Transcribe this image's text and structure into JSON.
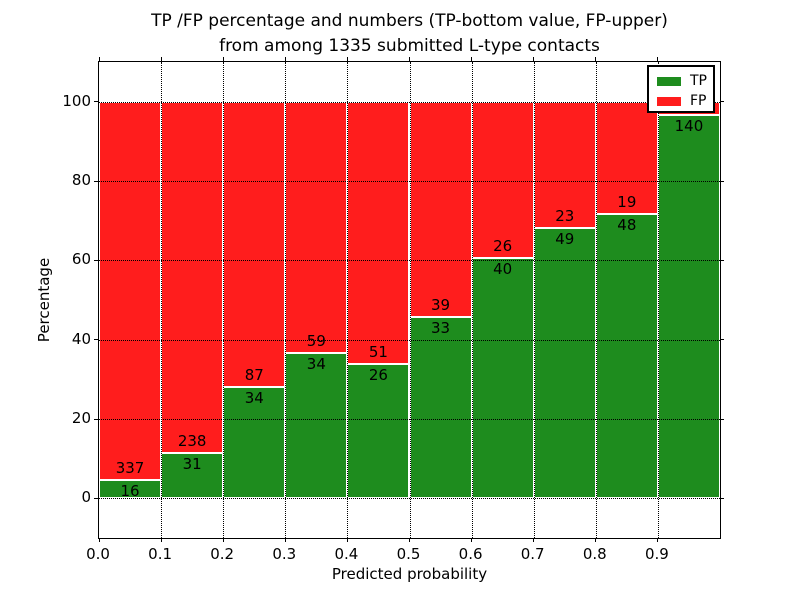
{
  "title": {
    "line1": "TP /FP percentage and numbers (TP-bottom value, FP-upper)",
    "line2": "from among 1335 submitted L-type contacts"
  },
  "axes": {
    "xlabel": "Predicted probability",
    "ylabel": "Percentage",
    "x_ticks": [
      {
        "value": 0.0,
        "label": "0.0"
      },
      {
        "value": 0.1,
        "label": "0.1"
      },
      {
        "value": 0.2,
        "label": "0.2"
      },
      {
        "value": 0.3,
        "label": "0.3"
      },
      {
        "value": 0.4,
        "label": "0.4"
      },
      {
        "value": 0.5,
        "label": "0.5"
      },
      {
        "value": 0.6,
        "label": "0.6"
      },
      {
        "value": 0.7,
        "label": "0.7"
      },
      {
        "value": 0.8,
        "label": "0.8"
      },
      {
        "value": 0.9,
        "label": "0.9"
      }
    ],
    "y_ticks": [
      {
        "value": 0,
        "label": "0"
      },
      {
        "value": 20,
        "label": "20"
      },
      {
        "value": 40,
        "label": "40"
      },
      {
        "value": 60,
        "label": "60"
      },
      {
        "value": 80,
        "label": "80"
      },
      {
        "value": 100,
        "label": "100"
      }
    ],
    "xlim": [
      0.0,
      1.0
    ],
    "ylim": [
      -10,
      110
    ],
    "grid_style": "dotted"
  },
  "legend": {
    "position": "upper-right",
    "items": [
      {
        "label": "TP",
        "color": "#1e8c1e"
      },
      {
        "label": "FP",
        "color": "#ff1d1d"
      }
    ]
  },
  "colors": {
    "tp": "#1e8c1e",
    "fp": "#ff1d1d",
    "bar_edge": "#ffffff",
    "grid": "#000000"
  },
  "chart_data": {
    "type": "bar",
    "stacked": true,
    "normalized_to_percent": true,
    "title": "TP /FP percentage and numbers (TP-bottom value, FP-upper) from among 1335 submitted L-type contacts",
    "xlabel": "Predicted probability",
    "ylabel": "Percentage",
    "total_submitted": 1335,
    "bin_width": 0.1,
    "bin_starts": [
      0.0,
      0.1,
      0.2,
      0.3,
      0.4,
      0.5,
      0.6,
      0.7,
      0.8,
      0.9
    ],
    "series": [
      {
        "name": "TP",
        "color": "#1e8c1e",
        "counts": [
          16,
          31,
          34,
          34,
          26,
          33,
          40,
          49,
          48,
          140
        ],
        "percent": [
          4.5,
          11.5,
          28.1,
          36.6,
          33.8,
          45.8,
          60.6,
          68.1,
          71.6,
          96.6
        ]
      },
      {
        "name": "FP",
        "color": "#ff1d1d",
        "counts": [
          337,
          238,
          87,
          59,
          51,
          39,
          26,
          23,
          19,
          null
        ],
        "count_labels": [
          "337",
          "238",
          "87",
          "59",
          "51",
          "39",
          "26",
          "23",
          "19",
          ""
        ],
        "percent": [
          95.5,
          88.5,
          71.9,
          63.4,
          66.2,
          54.2,
          39.4,
          31.9,
          28.4,
          3.4
        ]
      }
    ],
    "label_rule": "TP count printed just below the TP/FP boundary, FP count just above it; last FP label hidden behind legend"
  }
}
